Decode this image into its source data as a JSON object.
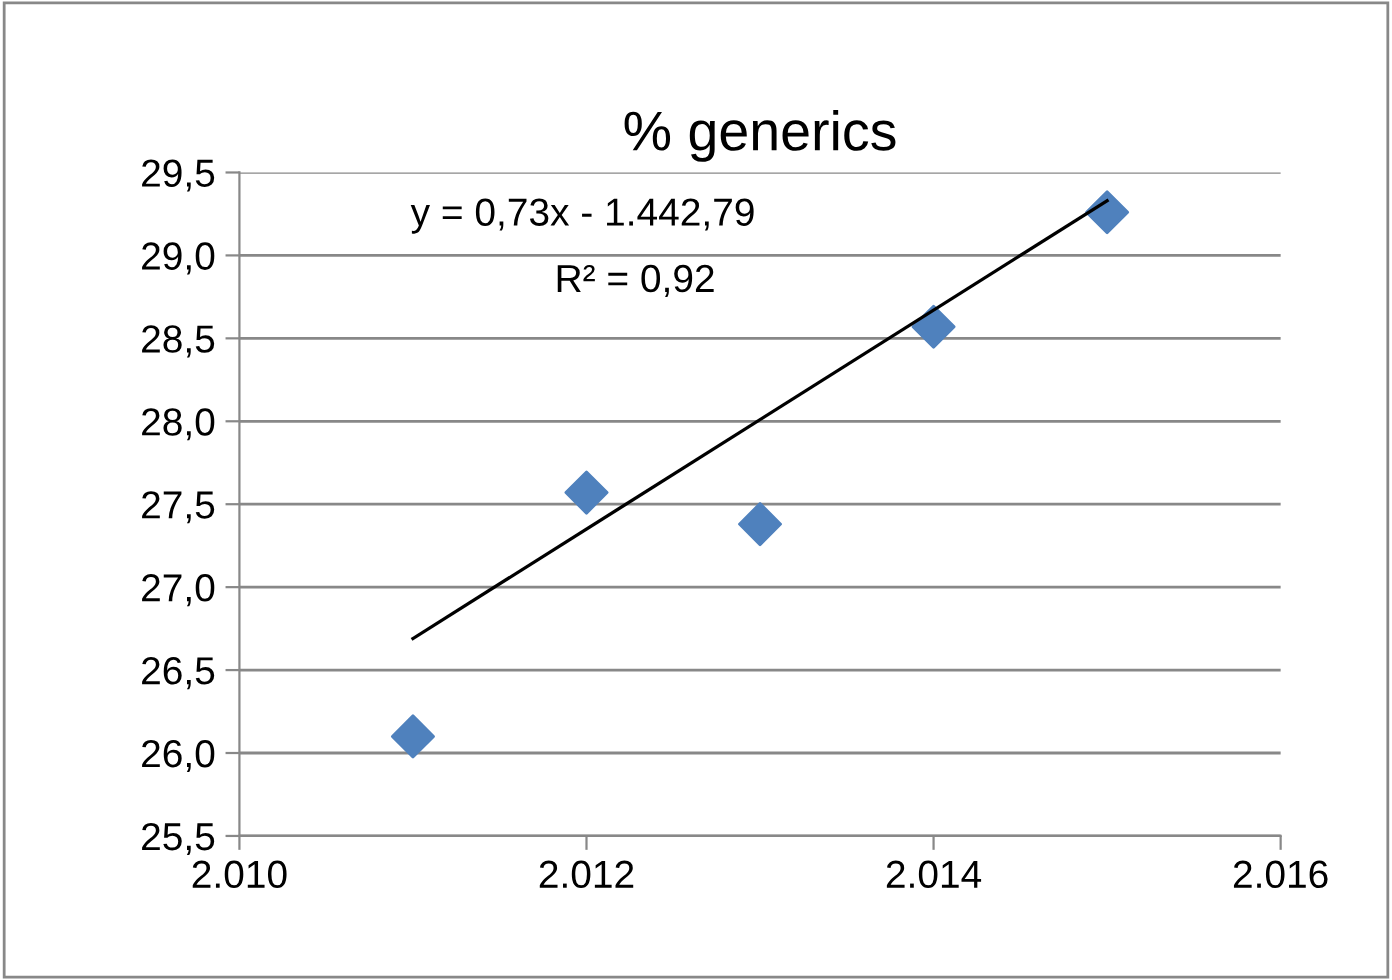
{
  "chart_data": {
    "type": "scatter",
    "title": "% generics",
    "x": [
      2011,
      2012,
      2013,
      2014,
      2015
    ],
    "series": [
      {
        "color": "#4f81bd",
        "marker": "diamond",
        "values": [
          26.1,
          27.57,
          27.38,
          28.57,
          29.26
        ]
      },
      {
        "type": "line",
        "color": "#000000",
        "marker": "none",
        "x": [
          2011,
          2015
        ],
        "values": [
          26.69,
          29.33
        ]
      }
    ],
    "annotations": [
      "y = 0,73x - 1.442,79",
      "R² = 0,92"
    ],
    "xlim": [
      2010,
      2016
    ],
    "xticks": [
      {
        "value": 2010,
        "label": "2.010"
      },
      {
        "value": 2012,
        "label": "2.012"
      },
      {
        "value": 2014,
        "label": "2.014"
      },
      {
        "value": 2016,
        "label": "2.016"
      }
    ],
    "ylim": [
      25.5,
      29.5
    ],
    "yticks": [
      {
        "value": 25.5,
        "label": "25,5"
      },
      {
        "value": 26,
        "label": "26,0"
      },
      {
        "value": 26.5,
        "label": "26,5"
      },
      {
        "value": 27,
        "label": "27,0"
      },
      {
        "value": 27.5,
        "label": "27,5"
      },
      {
        "value": 28,
        "label": "28,0"
      },
      {
        "value": 28.5,
        "label": "28,5"
      },
      {
        "value": 29,
        "label": "29,0"
      },
      {
        "value": 29.5,
        "label": "29,5"
      }
    ],
    "grid": "y",
    "legend": false
  }
}
